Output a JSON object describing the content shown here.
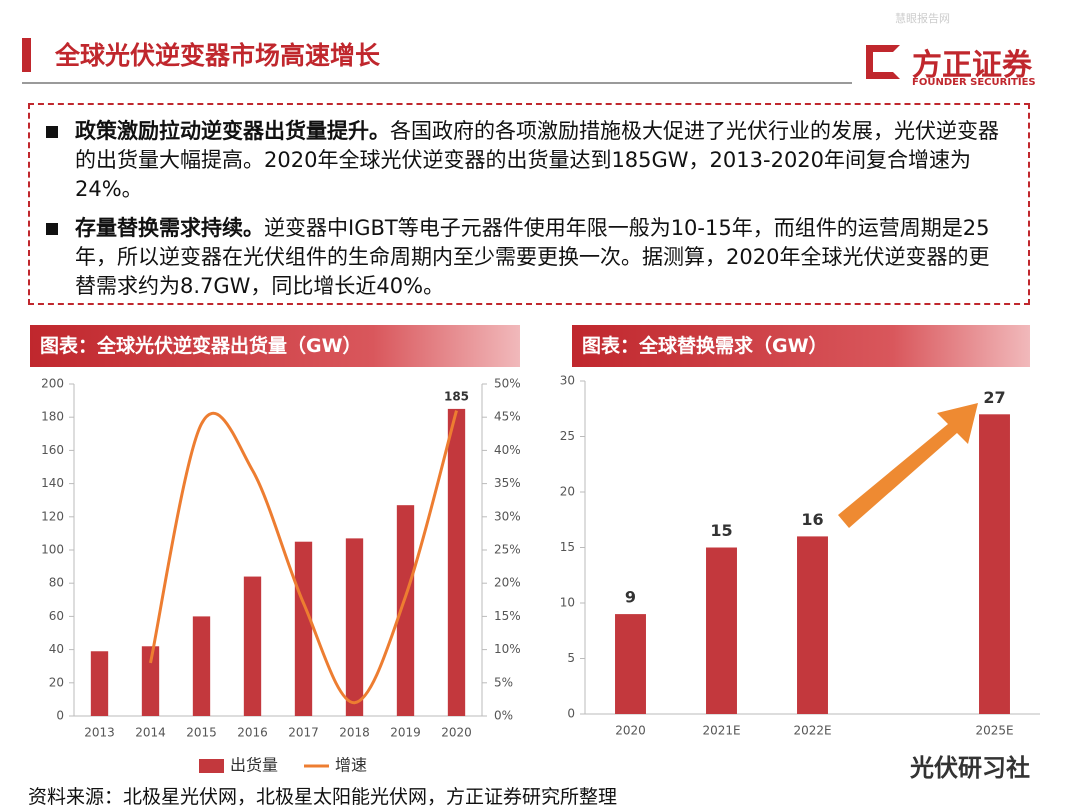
{
  "slide": {
    "title": "全球光伏逆变器市场高速增长",
    "logo": "方正证券",
    "logo_en": "FOUNDER SECURITIES",
    "watermark": "慧眼报告网",
    "bullets": [
      {
        "bold": "政策激励拉动逆变器出货量提升。",
        "text": "各国政府的各项激励措施极大促进了光伏行业的发展，光伏逆变器的出货量大幅提高。2020年全球光伏逆变器的出货量达到185GW，2013-2020年间复合增速为24%。"
      },
      {
        "bold": "存量替换需求持续。",
        "text": "逆变器中IGBT等电子元器件使用年限一般为10-15年，而组件的运营周期是25年，所以逆变器在光伏组件的生命周期内至少需要更换一次。据测算，2020年全球光伏逆变器的更替需求约为8.7GW，同比增长近40%。"
      }
    ],
    "source": "资料来源：北极星光伏网，北极星太阳能光伏网，方正证券研究所整理",
    "wechat": "光伏研习社"
  },
  "chart_data": [
    {
      "type": "bar",
      "title": "图表：全球光伏逆变器出货量（GW）",
      "categories": [
        "2013",
        "2014",
        "2015",
        "2016",
        "2017",
        "2018",
        "2019",
        "2020"
      ],
      "series": [
        {
          "name": "出货量",
          "type": "bar",
          "color": "#c3383d",
          "values": [
            39,
            42,
            60,
            84,
            105,
            107,
            127,
            185
          ],
          "value_labels": [
            null,
            null,
            null,
            null,
            null,
            null,
            null,
            "185"
          ]
        },
        {
          "name": "增速",
          "type": "line",
          "axis": "y2",
          "color": "#ed7d31",
          "values": [
            null,
            8,
            44,
            37,
            17,
            2,
            18,
            46
          ]
        }
      ],
      "ylim": [
        0,
        200
      ],
      "yticks": [
        0,
        20,
        40,
        60,
        80,
        100,
        120,
        140,
        160,
        180,
        200
      ],
      "y2lim": [
        0,
        50
      ],
      "y2ticks": [
        {
          "value": 0,
          "label": "0%"
        },
        {
          "value": 5,
          "label": "5%"
        },
        {
          "value": 10,
          "label": "10%"
        },
        {
          "value": 15,
          "label": "15%"
        },
        {
          "value": 20,
          "label": "20%"
        },
        {
          "value": 25,
          "label": "25%"
        },
        {
          "value": 30,
          "label": "30%"
        },
        {
          "value": 35,
          "label": "35%"
        },
        {
          "value": 40,
          "label": "40%"
        },
        {
          "value": 45,
          "label": "45%"
        },
        {
          "value": 50,
          "label": "50%"
        }
      ],
      "legend": "bottom"
    },
    {
      "type": "bar",
      "title": "图表：全球替换需求（GW）",
      "categories": [
        "2020",
        "2021E",
        "2022E",
        null,
        "2025E"
      ],
      "series": [
        {
          "name": null,
          "type": "bar",
          "color": "#c3383d",
          "values": [
            9,
            15,
            16,
            null,
            27
          ]
        }
      ],
      "data_labels": true,
      "ylim": [
        0,
        30
      ],
      "yticks": [
        0,
        5,
        10,
        15,
        20,
        25,
        30
      ]
    }
  ]
}
